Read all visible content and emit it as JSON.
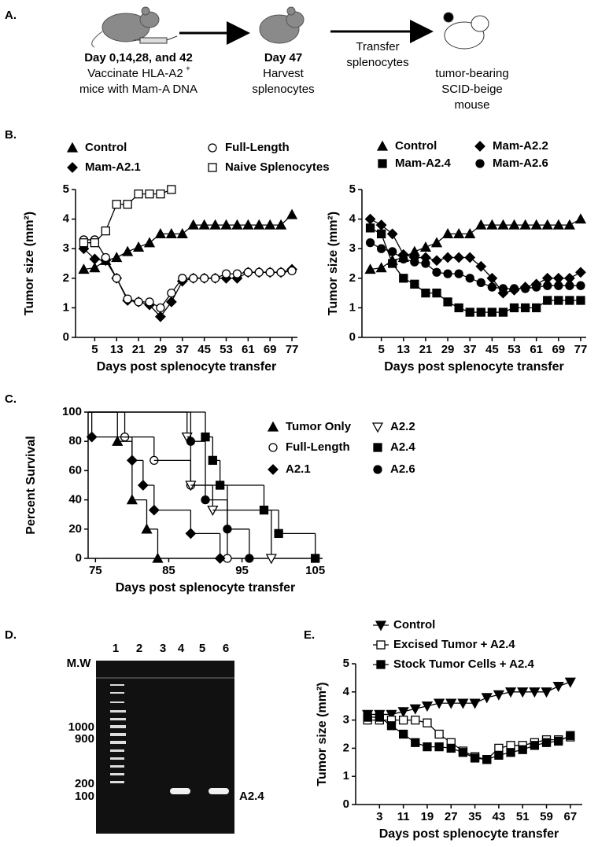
{
  "panel_labels": [
    "A.",
    "B.",
    "C.",
    "D.",
    "E."
  ],
  "diagram": {
    "step1": {
      "title": "Day 0,14,28, and 42",
      "line1": "Vaccinate HLA-A2",
      "superscript": "+",
      "line2": "mice with Mam-A DNA"
    },
    "step2": {
      "title": "Day 47",
      "line1": "Harvest",
      "line2": "splenocytes"
    },
    "transfer": {
      "line1": "Transfer",
      "line2": "splenocytes"
    },
    "step3": {
      "line1": "tumor-bearing",
      "line2": "SCID-beige",
      "line3": "mouse"
    }
  },
  "gel": {
    "lanes": [
      "1",
      "2",
      "3",
      "4",
      "5",
      "6"
    ],
    "marker_label": "M.W",
    "sizes": [
      "1000",
      "900",
      "200",
      "100"
    ],
    "band_label": "A2.4"
  },
  "chart_data": [
    {
      "type": "line",
      "x": [
        1,
        5,
        9,
        13,
        17,
        21,
        25,
        29,
        33,
        37,
        41,
        45,
        49,
        53,
        57,
        61,
        65,
        69,
        73,
        77
      ],
      "xlim": [
        -2,
        79
      ],
      "xticks": [
        5,
        13,
        21,
        29,
        37,
        45,
        53,
        61,
        69,
        77
      ],
      "ylim": [
        0,
        5
      ],
      "yticks": [
        0,
        1,
        2,
        3,
        4,
        5
      ],
      "x_label": "Days post splenocyte transfer",
      "y_label": "Tumor size (mm²)",
      "series": [
        {
          "name": "Control",
          "marker": "triangle",
          "color": "#000000",
          "values": [
            2.3,
            2.35,
            2.6,
            2.7,
            2.9,
            3.05,
            3.2,
            3.5,
            3.5,
            3.5,
            3.8,
            3.8,
            3.8,
            3.8,
            3.8,
            3.8,
            3.8,
            3.8,
            3.8,
            4.15
          ]
        },
        {
          "name": "Mam-A2.1",
          "marker": "diamond",
          "color": "#000000",
          "values": [
            3.0,
            2.65,
            2.6,
            2.0,
            1.25,
            1.2,
            1.1,
            0.7,
            1.2,
            1.9,
            2.0,
            2.0,
            2.0,
            2.0,
            2.0,
            2.2,
            2.2,
            2.2,
            2.2,
            2.3
          ]
        },
        {
          "name": "Full-Length",
          "marker": "circle-open",
          "color": "#000000",
          "values": [
            3.3,
            3.3,
            2.7,
            2.0,
            1.3,
            1.2,
            1.2,
            1.0,
            1.5,
            2.0,
            2.0,
            2.0,
            2.0,
            2.15,
            2.15,
            2.2,
            2.2,
            2.2,
            2.2,
            2.25
          ]
        },
        {
          "name": "Naive Splenocytes",
          "marker": "square-open",
          "color": "#000000",
          "values": [
            3.2,
            3.2,
            3.6,
            4.5,
            4.5,
            4.85,
            4.85,
            4.85,
            5.0,
            null,
            null,
            null,
            null,
            null,
            null,
            null,
            null,
            null,
            null,
            null
          ]
        }
      ]
    },
    {
      "type": "line",
      "x": [
        1,
        5,
        9,
        13,
        17,
        21,
        25,
        29,
        33,
        37,
        41,
        45,
        49,
        53,
        57,
        61,
        65,
        69,
        73,
        77
      ],
      "xlim": [
        -2,
        79
      ],
      "xticks": [
        5,
        13,
        21,
        29,
        37,
        45,
        53,
        61,
        69,
        77
      ],
      "ylim": [
        0,
        5
      ],
      "yticks": [
        0,
        1,
        2,
        3,
        4,
        5
      ],
      "x_label": "Days post splenocyte transfer",
      "y_label": "Tumor size (mm²)",
      "series": [
        {
          "name": "Control",
          "marker": "triangle",
          "color": "#000000",
          "values": [
            2.3,
            2.35,
            2.6,
            2.7,
            2.9,
            3.05,
            3.2,
            3.5,
            3.5,
            3.5,
            3.8,
            3.8,
            3.8,
            3.8,
            3.8,
            3.8,
            3.8,
            3.8,
            3.8,
            4.0
          ]
        },
        {
          "name": "Mam-A2.2",
          "marker": "diamond",
          "color": "#000000",
          "values": [
            4.0,
            3.8,
            3.5,
            2.8,
            2.7,
            2.7,
            2.6,
            2.7,
            2.7,
            2.7,
            2.4,
            2.0,
            1.5,
            1.6,
            1.7,
            1.8,
            2.0,
            2.0,
            2.0,
            2.2
          ]
        },
        {
          "name": "Mam-A2.4",
          "marker": "square",
          "color": "#000000",
          "values": [
            3.7,
            3.5,
            2.5,
            2.0,
            1.8,
            1.5,
            1.5,
            1.2,
            1.0,
            0.85,
            0.85,
            0.85,
            0.85,
            1.0,
            1.0,
            1.0,
            1.25,
            1.25,
            1.25,
            1.25
          ]
        },
        {
          "name": "Mam-A2.6",
          "marker": "circle",
          "color": "#000000",
          "values": [
            3.2,
            3.0,
            2.9,
            2.65,
            2.55,
            2.5,
            2.2,
            2.15,
            2.15,
            2.0,
            1.85,
            1.7,
            1.65,
            1.65,
            1.65,
            1.7,
            1.75,
            1.75,
            1.75,
            1.75
          ]
        }
      ]
    },
    {
      "type": "step",
      "xlim": [
        74,
        106
      ],
      "xticks": [
        75,
        85,
        95,
        105
      ],
      "ylim": [
        0,
        100
      ],
      "yticks": [
        0,
        20,
        40,
        60,
        80,
        100
      ],
      "x_label": "Days post splenocyte transfer",
      "y_label": "Percent Survival",
      "series": [
        {
          "name": "Tumor Only",
          "marker": "triangle",
          "color": "#000000",
          "x": [
            78,
            80,
            82,
            83.5
          ],
          "values": [
            80,
            40,
            20,
            0
          ]
        },
        {
          "name": "Full-Length",
          "marker": "circle-open",
          "color": "#000000",
          "x": [
            79,
            83,
            88,
            93
          ],
          "values": [
            83,
            67,
            50,
            0
          ]
        },
        {
          "name": "A2.1",
          "marker": "diamond",
          "color": "#000000",
          "x": [
            74.5,
            80,
            81.5,
            83,
            88,
            92
          ],
          "values": [
            83,
            67,
            50,
            33,
            17,
            0
          ]
        },
        {
          "name": "A2.2",
          "marker": "triangle-down-open",
          "color": "#000000",
          "x": [
            87.5,
            88,
            91,
            99
          ],
          "values": [
            83,
            50,
            33,
            0
          ]
        },
        {
          "name": "A2.4",
          "marker": "square",
          "color": "#000000",
          "x": [
            90,
            91,
            92,
            98,
            100,
            105
          ],
          "values": [
            83,
            67,
            50,
            33,
            17,
            0
          ]
        },
        {
          "name": "A2.6",
          "marker": "circle",
          "color": "#000000",
          "x": [
            88,
            90,
            93,
            96
          ],
          "values": [
            80,
            40,
            20,
            0
          ]
        }
      ]
    },
    {
      "type": "line",
      "x": [
        -1,
        3,
        7,
        11,
        15,
        19,
        23,
        27,
        31,
        35,
        39,
        43,
        47,
        51,
        55,
        59,
        63,
        67
      ],
      "xlim": [
        -5,
        71
      ],
      "xticks": [
        3,
        11,
        19,
        27,
        35,
        43,
        51,
        59,
        67
      ],
      "ylim": [
        0,
        5
      ],
      "yticks": [
        0,
        1,
        2,
        3,
        4,
        5
      ],
      "x_label": "Days post splenocyte transfer",
      "y_label": "Tumor size (mm²)",
      "series": [
        {
          "name": "Control",
          "marker": "triangle-down",
          "color": "#000000",
          "values": [
            3.2,
            3.2,
            3.2,
            3.3,
            3.4,
            3.5,
            3.6,
            3.6,
            3.6,
            3.6,
            3.8,
            3.9,
            4.0,
            4.0,
            4.0,
            4.0,
            4.2,
            4.35
          ]
        },
        {
          "name": "Excised Tumor + A2.4",
          "marker": "square-open",
          "color": "#000000",
          "values": [
            3.0,
            3.0,
            3.0,
            3.0,
            3.0,
            2.9,
            2.5,
            2.2,
            1.9,
            1.7,
            1.6,
            2.0,
            2.1,
            2.1,
            2.2,
            2.3,
            2.3,
            2.4
          ]
        },
        {
          "name": "Stock Tumor Cells + A2.4",
          "marker": "square",
          "color": "#000000",
          "values": [
            3.1,
            3.1,
            2.8,
            2.5,
            2.2,
            2.05,
            2.05,
            2.0,
            1.85,
            1.65,
            1.6,
            1.75,
            1.85,
            1.95,
            2.1,
            2.2,
            2.25,
            2.45
          ]
        }
      ]
    }
  ]
}
